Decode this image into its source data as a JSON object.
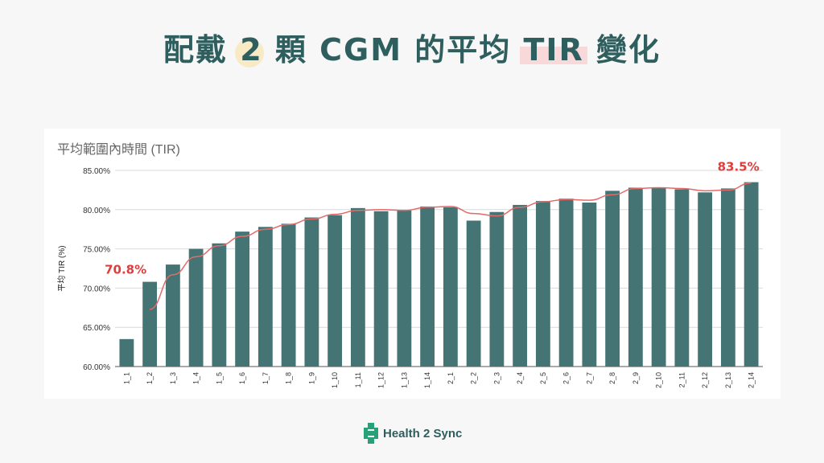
{
  "page_title": {
    "part1": "配戴 ",
    "highlight_number": "2",
    "part2": " 顆 CGM 的平均 ",
    "highlight_word": "TIR",
    "part3": " 變化"
  },
  "colors": {
    "bar": "#447574",
    "trend": "#e46a6a",
    "annotation": "#e03c3c",
    "title": "#2f5e5f",
    "logo_green": "#27a178"
  },
  "brand": {
    "name": "Health 2 Sync",
    "icon": "cross-logo-icon"
  },
  "chart_data": {
    "type": "bar",
    "title": "平均範圍內時間 (TIR)",
    "xlabel": "",
    "ylabel": "平均 TIR (%)",
    "ylim": [
      60,
      85
    ],
    "yticks": [
      "60.00%",
      "65.00%",
      "70.00%",
      "75.00%",
      "80.00%",
      "85.00%"
    ],
    "ytick_values": [
      60,
      65,
      70,
      75,
      80,
      85
    ],
    "grid": true,
    "categories": [
      "1_1",
      "1_2",
      "1_3",
      "1_4",
      "1_5",
      "1_6",
      "1_7",
      "1_8",
      "1_9",
      "1_10",
      "1_11",
      "1_12",
      "1_13",
      "1_14",
      "2_1",
      "2_2",
      "2_3",
      "2_4",
      "2_5",
      "2_6",
      "2_7",
      "2_8",
      "2_9",
      "2_10",
      "2_11",
      "2_12",
      "2_13",
      "2_14"
    ],
    "values": [
      63.5,
      70.8,
      73.0,
      75.0,
      75.7,
      77.2,
      77.8,
      78.2,
      79.0,
      79.3,
      80.2,
      79.8,
      79.9,
      80.4,
      80.3,
      78.6,
      79.7,
      80.6,
      81.1,
      81.4,
      80.9,
      82.4,
      82.8,
      82.8,
      82.6,
      82.2,
      82.7,
      83.5
    ],
    "trend_values": [
      null,
      67.3,
      71.7,
      74.0,
      75.4,
      76.6,
      77.5,
      78.1,
      78.8,
      79.4,
      79.9,
      80.0,
      79.9,
      80.3,
      80.4,
      79.5,
      79.2,
      80.3,
      81.0,
      81.3,
      81.2,
      81.9,
      82.7,
      82.8,
      82.7,
      82.4,
      82.5,
      83.4
    ],
    "annotations": [
      {
        "index": 1,
        "label": "70.8%"
      },
      {
        "index": 27,
        "label": "83.5%"
      }
    ]
  }
}
